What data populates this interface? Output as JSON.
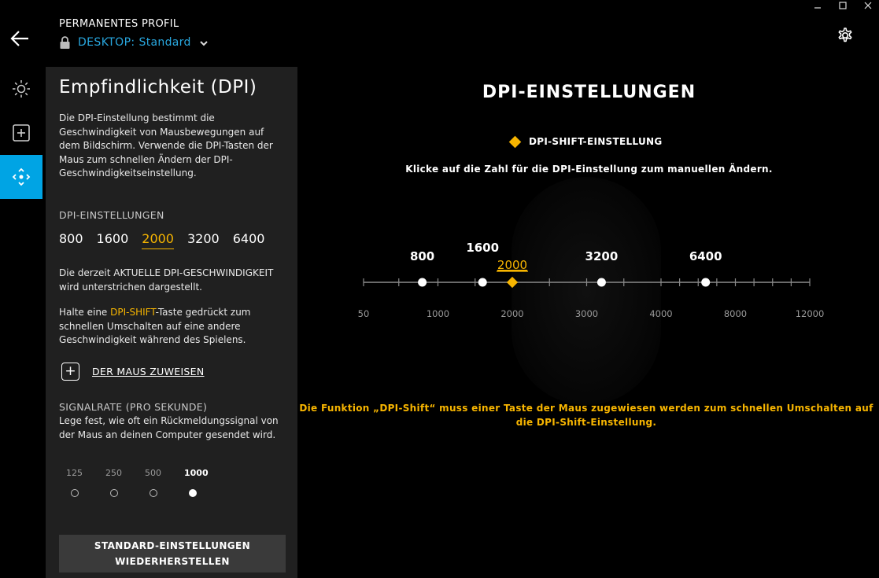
{
  "window": {
    "controls": [
      "minimize",
      "maximize",
      "close"
    ]
  },
  "header": {
    "profile_caption": "PERMANENTES PROFIL",
    "device": "DESKTOP:",
    "profile_name": "Standard"
  },
  "panel": {
    "title": "Empfindlichkeit (DPI)",
    "description": "Die DPI-Einstellung bestimmt die Geschwindigkeit von Mausbewegungen auf dem Bildschirm. Verwende die DPI-Tasten der Maus zum schnellen Ändern der DPI-Geschwindigkeitseinstellung.",
    "dpi_section_label": "DPI-EINSTELLUNGEN",
    "dpi_values": [
      "800",
      "1600",
      "2000",
      "3200",
      "6400"
    ],
    "current_dpi": "2000",
    "current_note": "Die derzeit AKTUELLE DPI-GESCHWINDIGKEIT wird unterstrichen dargestellt.",
    "shift_note_pre": "Halte eine ",
    "shift_note_hl": "DPI-SHIFT",
    "shift_note_post": "-Taste gedrückt zum schnellen Umschalten auf eine andere Geschwindigkeit während des Spielens.",
    "assign_label": "DER MAUS ZUWEISEN",
    "rate_section_label": "SIGNALRATE (PRO SEKUNDE)",
    "rate_description": "Lege fest, wie oft ein Rückmeldungssignal von der Maus an deinen Computer gesendet wird.",
    "rates": [
      "125",
      "250",
      "500",
      "1000"
    ],
    "selected_rate": "1000",
    "reset_line1": "STANDARD-EINSTELLUNGEN",
    "reset_line2": "WIEDERHERSTELLEN"
  },
  "main": {
    "title": "DPI-EINSTELLUNGEN",
    "shift_legend": "DPI-SHIFT-EINSTELLUNG",
    "hint": "Klicke auf die Zahl für die DPI-Einstellung zum manuellen Ändern.",
    "slider": {
      "min": 50,
      "max": 12000,
      "axis_labels": [
        "50",
        "1000",
        "2000",
        "3000",
        "4000",
        "8000",
        "12000"
      ],
      "levels": [
        {
          "value": 800,
          "label": "800"
        },
        {
          "value": 1600,
          "label": "1600"
        },
        {
          "value": 2000,
          "label": "2000",
          "shift": true
        },
        {
          "value": 3200,
          "label": "3200"
        },
        {
          "value": 6400,
          "label": "6400"
        }
      ]
    },
    "warning": "Die Funktion „DPI-Shift“ muss einer Taste der Maus zugewiesen werden zum schnellen Umschalten auf die DPI-Shift-Einstellung."
  },
  "colors": {
    "accent_blue": "#00a4e4",
    "profile_blue": "#29a8e0",
    "shift_yellow": "#f7b500",
    "panel_bg": "#202020"
  },
  "icons": {
    "back": "arrow-left-icon",
    "lock": "lock-icon",
    "chevron": "chevron-down-icon",
    "gear": "gear-icon",
    "lighting": "sun-icon",
    "assignments": "plus-square-icon",
    "sensitivity": "move-arrows-icon"
  }
}
